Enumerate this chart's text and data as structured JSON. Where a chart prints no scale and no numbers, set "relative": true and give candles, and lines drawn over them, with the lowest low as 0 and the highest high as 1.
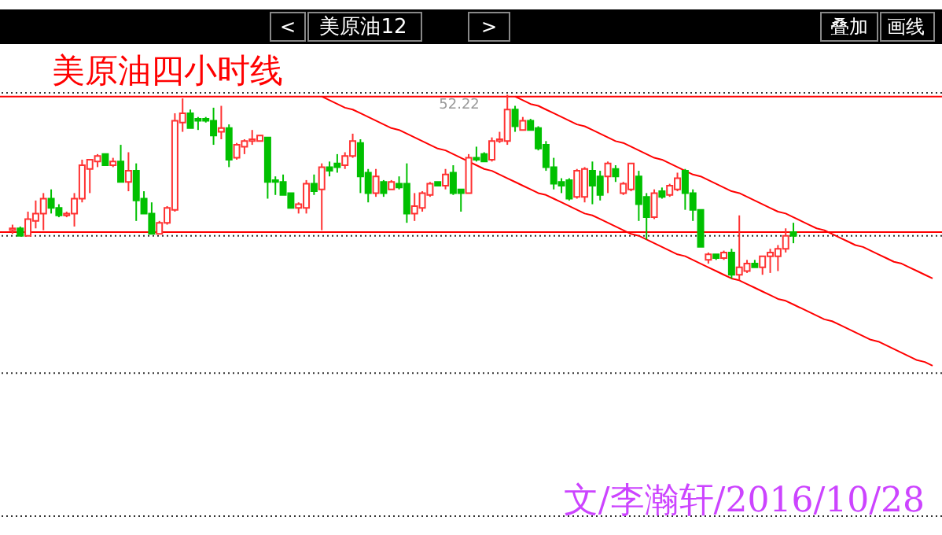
{
  "chart_data": {
    "type": "candlestick",
    "title": "美原油四小时线",
    "relative": true,
    "annotations": [
      "<",
      "美原油12",
      ">",
      "叠加",
      "画线",
      "52.22",
      "文/李瀚轩/2016/10/28"
    ],
    "categories": [
      null,
      null,
      null,
      null,
      null,
      null,
      null,
      null,
      null,
      null,
      null,
      null,
      null,
      null,
      null,
      null,
      null,
      null,
      null,
      null,
      null,
      null,
      null,
      null,
      null,
      null,
      null,
      null,
      null,
      null,
      null,
      null,
      null,
      null,
      null,
      null,
      null,
      null,
      null,
      null,
      null,
      null,
      null,
      null,
      null,
      null,
      null,
      null,
      null,
      null,
      null,
      null,
      null,
      null,
      null,
      null,
      null,
      null,
      null,
      null,
      null,
      null,
      null,
      null,
      null,
      null,
      null,
      null,
      null,
      null,
      null,
      null,
      null,
      null,
      null,
      null,
      null,
      null,
      null,
      null,
      null,
      null,
      null,
      null,
      null,
      null,
      null,
      null,
      null,
      null,
      null,
      null,
      null,
      null,
      null,
      null,
      null,
      null,
      null,
      null,
      null,
      null,
      null,
      null,
      null,
      null,
      null,
      null,
      null,
      null,
      null,
      null,
      null,
      null,
      null,
      null,
      null,
      null,
      null,
      null
    ],
    "ohlc": [
      [
        0.27,
        0.3,
        0.25,
        0.28
      ],
      [
        0.28,
        0.29,
        0.24,
        0.24
      ],
      [
        0.24,
        0.37,
        0.24,
        0.33
      ],
      [
        0.32,
        0.43,
        0.28,
        0.36
      ],
      [
        0.36,
        0.47,
        0.27,
        0.44
      ],
      [
        0.44,
        0.49,
        0.36,
        0.39
      ],
      [
        0.39,
        0.41,
        0.34,
        0.35
      ],
      [
        0.35,
        0.37,
        0.34,
        0.36
      ],
      [
        0.36,
        0.47,
        0.29,
        0.44
      ],
      [
        0.44,
        0.65,
        0.42,
        0.62
      ],
      [
        0.6,
        0.65,
        0.47,
        0.65
      ],
      [
        0.64,
        0.68,
        0.61,
        0.67
      ],
      [
        0.68,
        0.68,
        0.62,
        0.62
      ],
      [
        0.62,
        0.66,
        0.61,
        0.64
      ],
      [
        0.64,
        0.73,
        0.53,
        0.53
      ],
      [
        0.53,
        0.69,
        0.48,
        0.59
      ],
      [
        0.59,
        0.63,
        0.32,
        0.43
      ],
      [
        0.44,
        0.48,
        0.36,
        0.36
      ],
      [
        0.36,
        0.42,
        0.25,
        0.25
      ],
      [
        0.25,
        0.32,
        0.25,
        0.31
      ],
      [
        0.31,
        0.4,
        0.3,
        0.39
      ],
      [
        0.38,
        0.9,
        0.37,
        0.86
      ],
      [
        0.85,
        0.98,
        0.8,
        0.9
      ],
      [
        0.9,
        0.92,
        0.82,
        0.82
      ],
      [
        0.87,
        0.88,
        0.81,
        0.86
      ],
      [
        0.87,
        0.88,
        0.85,
        0.86
      ],
      [
        0.86,
        0.93,
        0.73,
        0.78
      ],
      [
        0.8,
        0.94,
        0.76,
        0.82
      ],
      [
        0.82,
        0.84,
        0.61,
        0.65
      ],
      [
        0.66,
        0.74,
        0.65,
        0.73
      ],
      [
        0.72,
        0.76,
        0.68,
        0.75
      ],
      [
        0.75,
        0.81,
        0.73,
        0.76
      ],
      [
        0.75,
        0.78,
        0.75,
        0.78
      ],
      [
        0.77,
        0.77,
        0.44,
        0.53
      ],
      [
        0.54,
        0.56,
        0.46,
        0.53
      ],
      [
        0.53,
        0.57,
        0.46,
        0.46
      ],
      [
        0.47,
        0.47,
        0.39,
        0.39
      ],
      [
        0.39,
        0.42,
        0.36,
        0.41
      ],
      [
        0.39,
        0.54,
        0.36,
        0.52
      ],
      [
        0.52,
        0.57,
        0.46,
        0.48
      ],
      [
        0.49,
        0.63,
        0.27,
        0.61
      ],
      [
        0.61,
        0.64,
        0.56,
        0.59
      ],
      [
        0.63,
        0.68,
        0.58,
        0.61
      ],
      [
        0.62,
        0.69,
        0.6,
        0.67
      ],
      [
        0.67,
        0.79,
        0.66,
        0.75
      ],
      [
        0.74,
        0.76,
        0.47,
        0.56
      ],
      [
        0.58,
        0.6,
        0.42,
        0.47
      ],
      [
        0.47,
        0.6,
        0.45,
        0.56
      ],
      [
        0.53,
        0.54,
        0.45,
        0.47
      ],
      [
        0.49,
        0.54,
        0.49,
        0.53
      ],
      [
        0.52,
        0.56,
        0.49,
        0.5
      ],
      [
        0.52,
        0.63,
        0.31,
        0.36
      ],
      [
        0.36,
        0.47,
        0.32,
        0.4
      ],
      [
        0.39,
        0.48,
        0.37,
        0.47
      ],
      [
        0.46,
        0.53,
        0.45,
        0.52
      ],
      [
        0.53,
        0.53,
        0.51,
        0.51
      ],
      [
        0.51,
        0.6,
        0.49,
        0.57
      ],
      [
        0.58,
        0.62,
        0.46,
        0.47
      ],
      [
        0.49,
        0.49,
        0.37,
        0.47
      ],
      [
        0.47,
        0.68,
        0.47,
        0.66
      ],
      [
        0.66,
        0.72,
        0.64,
        0.65
      ],
      [
        0.68,
        0.69,
        0.64,
        0.64
      ],
      [
        0.65,
        0.77,
        0.64,
        0.75
      ],
      [
        0.75,
        0.8,
        0.74,
        0.76
      ],
      [
        0.75,
        1.0,
        0.73,
        0.92
      ],
      [
        0.92,
        0.94,
        0.8,
        0.83
      ],
      [
        0.81,
        0.88,
        0.81,
        0.86
      ],
      [
        0.86,
        0.87,
        0.81,
        0.81
      ],
      [
        0.82,
        0.83,
        0.7,
        0.71
      ],
      [
        0.73,
        0.75,
        0.59,
        0.61
      ],
      [
        0.61,
        0.66,
        0.49,
        0.52
      ],
      [
        0.53,
        0.55,
        0.47,
        0.51
      ],
      [
        0.54,
        0.55,
        0.43,
        0.44
      ],
      [
        0.45,
        0.6,
        0.44,
        0.59
      ],
      [
        0.45,
        0.61,
        0.42,
        0.6
      ],
      [
        0.59,
        0.64,
        0.41,
        0.51
      ],
      [
        0.56,
        0.59,
        0.43,
        0.46
      ],
      [
        0.56,
        0.64,
        0.47,
        0.63
      ],
      [
        0.6,
        0.62,
        0.53,
        0.56
      ],
      [
        0.47,
        0.53,
        0.46,
        0.52
      ],
      [
        0.49,
        0.63,
        0.48,
        0.63
      ],
      [
        0.56,
        0.59,
        0.32,
        0.41
      ],
      [
        0.45,
        0.47,
        0.22,
        0.34
      ],
      [
        0.34,
        0.49,
        0.33,
        0.47
      ],
      [
        0.48,
        0.5,
        0.44,
        0.45
      ],
      [
        0.46,
        0.52,
        0.45,
        0.51
      ],
      [
        0.49,
        0.58,
        0.48,
        0.55
      ],
      [
        0.59,
        0.6,
        0.38,
        0.47
      ],
      [
        0.47,
        0.49,
        0.32,
        0.38
      ],
      [
        0.38,
        0.38,
        0.18,
        0.18
      ],
      [
        0.11,
        0.15,
        0.09,
        0.14
      ],
      [
        0.14,
        0.14,
        0.11,
        0.12
      ],
      [
        0.12,
        0.16,
        0.11,
        0.15
      ],
      [
        0.15,
        0.17,
        0.01,
        0.03
      ],
      [
        0.03,
        0.35,
        0.0,
        0.07
      ],
      [
        0.05,
        0.11,
        0.04,
        0.09
      ],
      [
        0.09,
        0.11,
        0.07,
        0.07
      ],
      [
        0.07,
        0.13,
        0.03,
        0.13
      ],
      [
        0.13,
        0.17,
        0.04,
        0.15
      ],
      [
        0.13,
        0.19,
        0.05,
        0.17
      ],
      [
        0.17,
        0.28,
        0.15,
        0.24
      ],
      [
        0.26,
        0.31,
        0.2,
        0.24
      ],
      null,
      null,
      null,
      null,
      null,
      null,
      null,
      null,
      null,
      null,
      null,
      null,
      null,
      null,
      null,
      null,
      null,
      null
    ],
    "colors": [
      "#ff3232",
      "#00c000",
      "#ff3232",
      "#ff3232",
      "#ff3232",
      "#00c000",
      "#00c000",
      "#ff3232",
      "#ff3232",
      "#ff3232",
      "#ff3232",
      "#ff3232",
      "#00c000",
      "#ff3232",
      "#00c000",
      "#ff3232",
      "#00c000",
      "#00c000",
      "#00c000",
      "#ff3232",
      "#ff3232",
      "#ff3232",
      "#ff3232",
      "#00c000",
      "#00c000",
      "#00c000",
      "#00c000",
      "#ff3232",
      "#00c000",
      "#ff3232",
      "#ff3232",
      "#ff3232",
      "#ff3232",
      "#00c000",
      "#00c000",
      "#00c000",
      "#00c000",
      "#ff3232",
      "#ff3232",
      "#00c000",
      "#ff3232",
      "#00c000",
      "#00c000",
      "#ff3232",
      "#ff3232",
      "#00c000",
      "#00c000",
      "#ff3232",
      "#00c000",
      "#ff3232",
      "#00c000",
      "#00c000",
      "#ff3232",
      "#ff3232",
      "#ff3232",
      "#00c000",
      "#ff3232",
      "#00c000",
      "#00c000",
      "#ff3232",
      "#00c000",
      "#00c000",
      "#ff3232",
      "#ff3232",
      "#ff3232",
      "#00c000",
      "#ff3232",
      "#00c000",
      "#00c000",
      "#00c000",
      "#00c000",
      "#00c000",
      "#00c000",
      "#ff3232",
      "#ff3232",
      "#00c000",
      "#00c000",
      "#ff3232",
      "#00c000",
      "#ff3232",
      "#ff3232",
      "#00c000",
      "#00c000",
      "#ff3232",
      "#00c000",
      "#ff3232",
      "#ff3232",
      "#00c000",
      "#00c000",
      "#00c000",
      "#ff3232",
      "#00c000",
      "#ff3232",
      "#00c000",
      "#ff3232",
      "#ff3232",
      "#00c000",
      "#ff3232",
      "#ff3232",
      "#ff3232",
      "#ff3232",
      "#00c000",
      null,
      null,
      null,
      null,
      null,
      null,
      null,
      null,
      null,
      null,
      null,
      null,
      null,
      null,
      null,
      null,
      null,
      null
    ],
    "series": [
      {
        "type": "line",
        "color": "#ff0000",
        "values": [
          null,
          null,
          null,
          null,
          null,
          null,
          null,
          null,
          null,
          null,
          null,
          null,
          null,
          null,
          null,
          null,
          null,
          null,
          null,
          null,
          null,
          null,
          null,
          null,
          null,
          null,
          null,
          null,
          null,
          null,
          null,
          null,
          null,
          null,
          null,
          null,
          null,
          null,
          null,
          null,
          null,
          null,
          null,
          null,
          null,
          null,
          null,
          null,
          null,
          null,
          null,
          null,
          null,
          null,
          null,
          null,
          null,
          null,
          null,
          null,
          null,
          null,
          null,
          null,
          null,
          0.99,
          0.97,
          0.95,
          0.94,
          0.92,
          0.9,
          0.88,
          0.86,
          0.84,
          0.83,
          0.81,
          0.79,
          0.77,
          0.75,
          0.74,
          0.72,
          0.7,
          0.68,
          0.66,
          0.65,
          0.63,
          0.61,
          0.59,
          0.57,
          0.56,
          0.54,
          0.52,
          0.5,
          0.48,
          0.47,
          0.45,
          0.43,
          0.41,
          0.39,
          0.37,
          0.36,
          0.34,
          0.32,
          0.3,
          0.28,
          0.27,
          0.25,
          0.23,
          0.21,
          0.19,
          0.18,
          0.16,
          0.14,
          0.12,
          0.1,
          0.09,
          0.07,
          0.05,
          0.03,
          0.01
        ]
      },
      {
        "type": "line",
        "color": "#ff0000",
        "values": [
          null,
          null,
          null,
          null,
          null,
          null,
          null,
          null,
          null,
          null,
          null,
          null,
          null,
          null,
          null,
          null,
          null,
          null,
          null,
          null,
          null,
          null,
          null,
          null,
          null,
          null,
          null,
          null,
          null,
          null,
          null,
          null,
          null,
          null,
          null,
          null,
          null,
          null,
          null,
          null,
          0.99,
          0.97,
          0.95,
          0.93,
          0.92,
          0.9,
          0.88,
          0.86,
          0.84,
          0.82,
          0.81,
          0.79,
          0.77,
          0.75,
          0.73,
          0.71,
          0.7,
          0.68,
          0.66,
          0.64,
          0.62,
          0.6,
          0.59,
          0.57,
          0.55,
          0.53,
          0.51,
          0.49,
          0.47,
          0.46,
          0.44,
          0.42,
          0.4,
          0.38,
          0.36,
          0.35,
          0.33,
          0.31,
          0.29,
          0.27,
          0.25,
          0.24,
          0.22,
          0.2,
          0.18,
          0.16,
          0.14,
          0.13,
          0.11,
          0.09,
          0.07,
          0.05,
          0.03,
          0.01,
          0.0,
          -0.02,
          -0.04,
          -0.06,
          -0.08,
          -0.1,
          -0.11,
          -0.13,
          -0.15,
          -0.17,
          -0.19,
          -0.21,
          -0.22,
          -0.24,
          -0.26,
          -0.28,
          -0.3,
          -0.32,
          -0.33,
          -0.35,
          -0.37,
          -0.39,
          -0.41,
          -0.43,
          -0.44,
          -0.46
        ]
      }
    ],
    "ref_lines": [
      {
        "axis": "y",
        "value": 0.99,
        "color": "#ff0000"
      },
      {
        "axis": "y",
        "value": 0.26,
        "color": "#ff0000"
      },
      {
        "axis": "y",
        "value": 1.01,
        "color": "#333333",
        "line_style": "dotted"
      },
      {
        "axis": "y",
        "value": 0.24,
        "color": "#333333",
        "line_style": "dotted"
      },
      {
        "axis": "y",
        "value": -0.5,
        "color": "#333333",
        "line_style": "dotted"
      },
      {
        "axis": "y",
        "value": -1.27,
        "color": "#333333",
        "line_style": "dotted"
      }
    ]
  }
}
